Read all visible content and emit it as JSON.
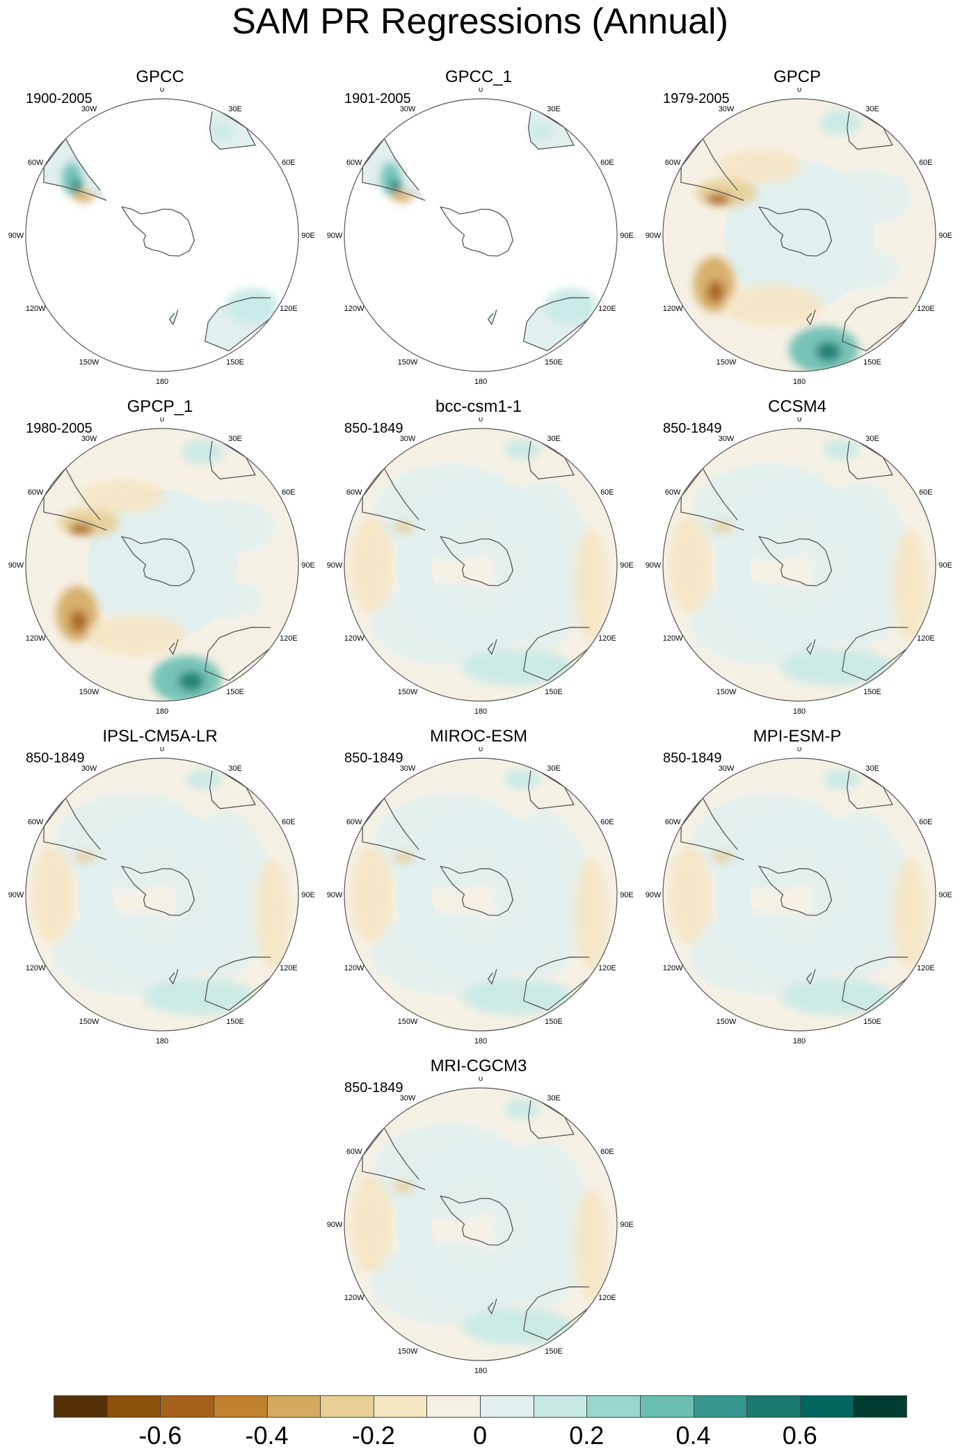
{
  "title": "SAM PR Regressions (Annual)",
  "lon_labels": [
    "0",
    "30E",
    "60E",
    "90E",
    "120E",
    "150E",
    "180",
    "150W",
    "120W",
    "90W",
    "60W",
    "30W"
  ],
  "panels": [
    {
      "name": "GPCC",
      "period": "1900-2005",
      "coverage": "land",
      "pattern": "gpcc"
    },
    {
      "name": "GPCC_1",
      "period": "1901-2005",
      "coverage": "land",
      "pattern": "gpcc"
    },
    {
      "name": "GPCP",
      "period": "1979-2005",
      "coverage": "global",
      "pattern": "gpcp"
    },
    {
      "name": "GPCP_1",
      "period": "1980-2005",
      "coverage": "global",
      "pattern": "gpcp"
    },
    {
      "name": "bcc-csm1-1",
      "period": "850-1849",
      "coverage": "global",
      "pattern": "model"
    },
    {
      "name": "CCSM4",
      "period": "850-1849",
      "coverage": "global",
      "pattern": "model"
    },
    {
      "name": "IPSL-CM5A-LR",
      "period": "850-1849",
      "coverage": "global",
      "pattern": "model"
    },
    {
      "name": "MIROC-ESM",
      "period": "850-1849",
      "coverage": "global",
      "pattern": "model"
    },
    {
      "name": "MPI-ESM-P",
      "period": "850-1849",
      "coverage": "global",
      "pattern": "model"
    },
    {
      "name": "MRI-CGCM3",
      "period": "850-1849",
      "coverage": "global",
      "pattern": "model"
    }
  ],
  "colorbar": {
    "colors": [
      "#543005",
      "#8c510a",
      "#a6611a",
      "#bf812d",
      "#d4aa60",
      "#e8cf95",
      "#f5e6c3",
      "#f5f0e4",
      "#e1efee",
      "#c7eae5",
      "#99d6cc",
      "#6abfb1",
      "#35978f",
      "#1a7a70",
      "#01665e",
      "#003c30"
    ],
    "tick_labels": [
      "-0.6",
      "-0.4",
      "-0.2",
      "0",
      "0.2",
      "0.4",
      "0.6"
    ],
    "tick_values": [
      -0.6,
      -0.4,
      -0.2,
      0,
      0.2,
      0.4,
      0.6
    ],
    "min": -0.8,
    "max": 0.8
  }
}
